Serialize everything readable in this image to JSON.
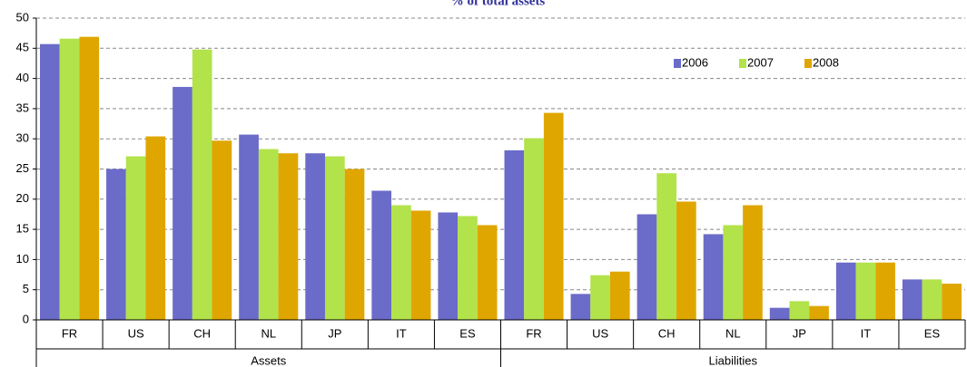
{
  "chart_data": {
    "type": "bar",
    "title": "% of total assets",
    "groups": [
      "Assets",
      "Liabilities"
    ],
    "categories": [
      "FR",
      "US",
      "CH",
      "NL",
      "JP",
      "IT",
      "ES",
      "FR",
      "US",
      "CH",
      "NL",
      "JP",
      "IT",
      "ES"
    ],
    "series": [
      {
        "name": "2006",
        "color": "#6b6bc9",
        "values": [
          45.7,
          25,
          38.6,
          30.7,
          27.6,
          21.4,
          17.8,
          28.1,
          4.3,
          17.5,
          14.2,
          2,
          9.5,
          6.7
        ]
      },
      {
        "name": "2007",
        "color": "#b2e34a",
        "values": [
          46.6,
          27.1,
          44.8,
          28.3,
          27.1,
          19,
          17.2,
          30.1,
          7.4,
          24.3,
          15.7,
          3.1,
          9.5,
          6.7
        ]
      },
      {
        "name": "2008",
        "color": "#e0a600",
        "values": [
          46.9,
          30.4,
          29.7,
          27.6,
          25,
          18.1,
          15.7,
          34.3,
          8,
          19.6,
          19,
          2.3,
          9.5,
          6
        ]
      }
    ],
    "ylim": [
      0,
      50
    ],
    "yticks": [
      0,
      5,
      10,
      15,
      20,
      25,
      30,
      35,
      40,
      45,
      50
    ],
    "grid": true,
    "legend": "top-right"
  }
}
